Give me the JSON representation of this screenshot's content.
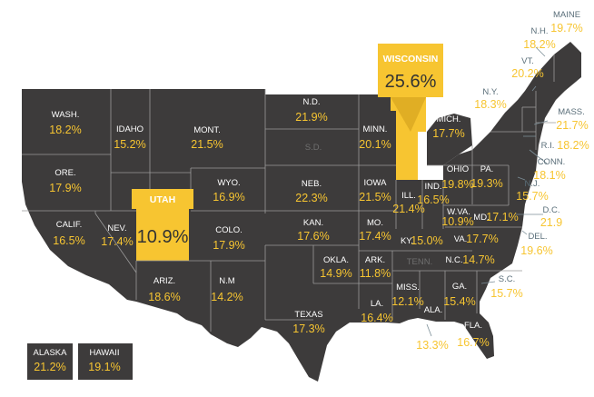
{
  "map": {
    "colors": {
      "land": "#3d3b3b",
      "border": "#9a9a9a",
      "highlight": "#f7c531",
      "value_text": "#f7c531",
      "name_text": "#ffffff",
      "external_name": "#5b6f7a"
    }
  },
  "states": {
    "wa": {
      "name": "WASH.",
      "value": "18.2%"
    },
    "or": {
      "name": "ORE.",
      "value": "17.9%"
    },
    "ca": {
      "name": "CALIF.",
      "value": "16.5%"
    },
    "id": {
      "name": "IDAHO",
      "value": "15.2%"
    },
    "nv": {
      "name": "NEV.",
      "value": "17.4%"
    },
    "ut": {
      "name": "UTAH",
      "value": "10.9%"
    },
    "az": {
      "name": "ARIZ.",
      "value": "18.6%"
    },
    "mt": {
      "name": "MONT.",
      "value": "21.5%"
    },
    "wy": {
      "name": "WYO.",
      "value": "16.9%"
    },
    "co": {
      "name": "COLO.",
      "value": "17.9%"
    },
    "nm": {
      "name": "N.M",
      "value": "14.2%"
    },
    "nd": {
      "name": "N.D.",
      "value": "21.9%"
    },
    "sd": {
      "name": "S.D."
    },
    "ne": {
      "name": "NEB.",
      "value": "22.3%"
    },
    "ks": {
      "name": "KAN.",
      "value": "17.6%"
    },
    "ok": {
      "name": "OKLA.",
      "value": "14.9%"
    },
    "tx": {
      "name": "TEXAS",
      "value": "17.3%"
    },
    "mn": {
      "name": "MINN.",
      "value": "20.1%"
    },
    "ia": {
      "name": "IOWA",
      "value": "21.5%"
    },
    "mo": {
      "name": "MO.",
      "value": "17.4%"
    },
    "ar": {
      "name": "ARK.",
      "value": "11.8%"
    },
    "la": {
      "name": "LA.",
      "value": "16.4%"
    },
    "wi": {
      "name": "WISCONSIN",
      "value": "25.6%"
    },
    "il": {
      "name": "ILL.",
      "value": "21.4%"
    },
    "in": {
      "name": "IND.",
      "value": "16.5%"
    },
    "mi": {
      "name": "MICH.",
      "value": "17.7%"
    },
    "oh": {
      "name": "OHIO",
      "value": "19.8%"
    },
    "ky": {
      "name": "KY.",
      "value": "15.0%"
    },
    "tn": {
      "name": "TENN."
    },
    "ms": {
      "name": "MISS.",
      "value": "12.1%"
    },
    "al": {
      "name": "ALA.",
      "value": "13.3%"
    },
    "ga": {
      "name": "GA.",
      "value": "15.4%"
    },
    "fl": {
      "name": "FLA.",
      "value": "16.7%"
    },
    "sc": {
      "name": "S.C.",
      "value": "15.7%"
    },
    "nc": {
      "name": "N.C.",
      "value": "14.7%"
    },
    "va": {
      "name": "VA.",
      "value": "17.7%"
    },
    "wv": {
      "name": "W.VA.",
      "value": "10.9%"
    },
    "pa": {
      "name": "PA.",
      "value": "19.3%"
    },
    "ny": {
      "name": "N.Y.",
      "value": "18.3%"
    },
    "nj": {
      "name": "N.J.",
      "value": "15.7%"
    },
    "de": {
      "name": "DEL.",
      "value": "19.6%"
    },
    "md": {
      "name": "MD.",
      "value": "17.1%"
    },
    "dc": {
      "name": "D.C.",
      "value": "21.9"
    },
    "ct": {
      "name": "CONN.",
      "value": "18.1%"
    },
    "ri": {
      "name": "R.I.",
      "value": "18.2%"
    },
    "ma": {
      "name": "MASS.",
      "value": "21.7%"
    },
    "vt": {
      "name": "VT.",
      "value": "20.2%"
    },
    "nh": {
      "name": "N.H.",
      "value": "18.2%"
    },
    "me": {
      "name": "MAINE",
      "value": "19.7%"
    },
    "ak": {
      "name": "ALASKA",
      "value": "21.2%"
    },
    "hi": {
      "name": "HAWAII",
      "value": "19.1%"
    }
  }
}
